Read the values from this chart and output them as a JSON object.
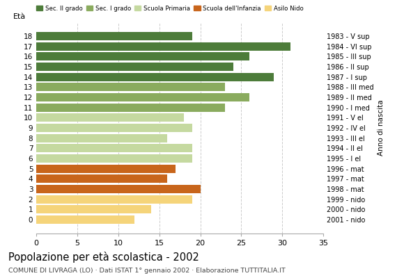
{
  "ages": [
    18,
    17,
    16,
    15,
    14,
    13,
    12,
    11,
    10,
    9,
    8,
    7,
    6,
    5,
    4,
    3,
    2,
    1,
    0
  ],
  "values": [
    19,
    31,
    26,
    24,
    29,
    23,
    26,
    23,
    18,
    19,
    16,
    19,
    19,
    17,
    16,
    20,
    19,
    14,
    12
  ],
  "right_labels": [
    "1983 - V sup",
    "1984 - VI sup",
    "1985 - III sup",
    "1986 - II sup",
    "1987 - I sup",
    "1988 - III med",
    "1989 - II med",
    "1990 - I med",
    "1991 - V el",
    "1992 - IV el",
    "1993 - III el",
    "1994 - II el",
    "1995 - I el",
    "1996 - mat",
    "1997 - mat",
    "1998 - mat",
    "1999 - nido",
    "2000 - nido",
    "2001 - nido"
  ],
  "categories": {
    "Sec. II grado": {
      "ages": [
        18,
        17,
        16,
        15,
        14
      ],
      "color": "#4d7c3a"
    },
    "Sec. I grado": {
      "ages": [
        13,
        12,
        11
      ],
      "color": "#8aab5e"
    },
    "Scuola Primaria": {
      "ages": [
        10,
        9,
        8,
        7,
        6
      ],
      "color": "#c5d9a0"
    },
    "Scuola dell'Infanzia": {
      "ages": [
        5,
        4,
        3
      ],
      "color": "#c8651b"
    },
    "Asilo Nido": {
      "ages": [
        2,
        1,
        0
      ],
      "color": "#f5d47a"
    }
  },
  "legend_colors": {
    "Sec. II grado": "#4d7c3a",
    "Sec. I grado": "#8aab5e",
    "Scuola Primaria": "#c5d9a0",
    "Scuola dell'Infanzia": "#c8651b",
    "Asilo Nido": "#f5d47a"
  },
  "title": "Popolazione per età scolastica - 2002",
  "subtitle": "COMUNE DI LIVRAGA (LO) · Dati ISTAT 1° gennaio 2002 · Elaborazione TUTTITALIA.IT",
  "xlabel_left": "Età",
  "xlabel_right": "Anno di nascita",
  "xlim": [
    0,
    35
  ],
  "xticks": [
    0,
    5,
    10,
    15,
    20,
    25,
    30,
    35
  ],
  "background_color": "#ffffff",
  "grid_color": "#cccccc",
  "bar_height": 0.82
}
